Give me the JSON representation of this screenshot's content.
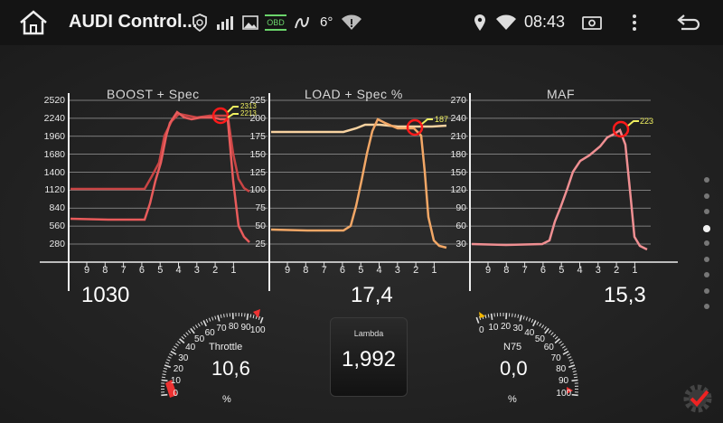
{
  "statusbar": {
    "title": "AUDI Control...",
    "clock": "08:43",
    "icons": [
      "home-icon",
      "shield-icon",
      "signal-bars-icon",
      "image-icon",
      "obd-icon",
      "squiggle-icon",
      "weather-icon",
      "wifi-alert-icon",
      "location-icon",
      "wifi-icon",
      "camera-icon",
      "more-icon",
      "back-icon"
    ],
    "temp": "6°",
    "obd": "OBD"
  },
  "panels": [
    {
      "id": "boost",
      "title": "BOOST + Spec",
      "yticks": [
        "2520",
        "2240",
        "1960",
        "1680",
        "1400",
        "1120",
        "840",
        "560",
        "280"
      ],
      "xticks": [
        "9",
        "8",
        "7",
        "6",
        "5",
        "4",
        "3",
        "2",
        "1"
      ],
      "marker_labels": [
        "2313",
        "2213"
      ],
      "value": "1030"
    },
    {
      "id": "load",
      "title": "LOAD + Spec  %",
      "yticks": [
        "225",
        "200",
        "175",
        "150",
        "125",
        "100",
        "75",
        "50",
        "25"
      ],
      "xticks": [
        "9",
        "8",
        "7",
        "6",
        "5",
        "4",
        "3",
        "2",
        "1"
      ],
      "marker_labels": [
        "187"
      ],
      "value": "17,4"
    },
    {
      "id": "maf",
      "title": "MAF",
      "yticks": [
        "270",
        "240",
        "210",
        "180",
        "150",
        "120",
        "90",
        "60",
        "30"
      ],
      "xticks": [
        "9",
        "8",
        "7",
        "6",
        "5",
        "4",
        "3",
        "2",
        "1"
      ],
      "marker_labels": [
        "223"
      ],
      "value": "15,3"
    }
  ],
  "throttle": {
    "label": "Throttle",
    "value": "10,6",
    "unit": "%",
    "scale": [
      "0",
      "10",
      "20",
      "30",
      "40",
      "50",
      "60",
      "70",
      "80",
      "90",
      "100"
    ]
  },
  "lambda": {
    "label": "Lambda",
    "value": "1,992"
  },
  "n75": {
    "label": "N75",
    "value": "0,0",
    "unit": "%",
    "scale": [
      "0",
      "10",
      "20",
      "30",
      "40",
      "50",
      "60",
      "70",
      "80",
      "90",
      "100"
    ]
  },
  "colors": {
    "boost": "#e85b5b",
    "boost_spec": "#c94444",
    "load": "#f2a766",
    "load_spec": "#f7d2a0",
    "maf": "#ef8f92",
    "marker": "#ff1a1a",
    "marker_label": "#f0f060"
  },
  "page_indicator": {
    "count": 9,
    "active": 3
  }
}
